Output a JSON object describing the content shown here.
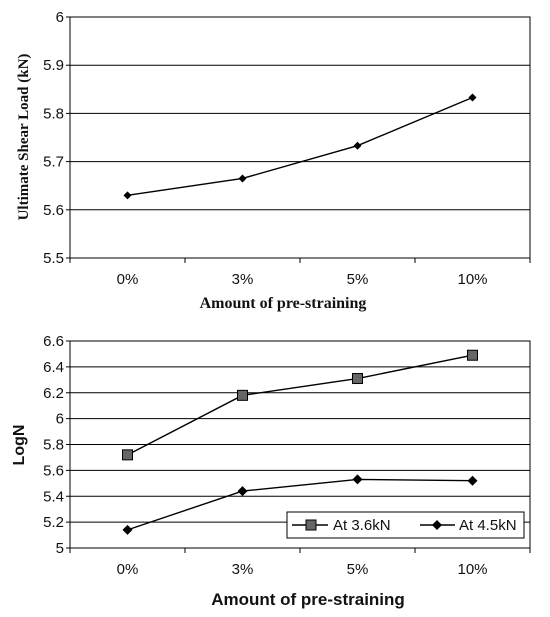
{
  "chart_data": [
    {
      "type": "line",
      "categories": [
        "0%",
        "3%",
        "5%",
        "10%"
      ],
      "series": [
        {
          "values": [
            5.63,
            5.665,
            5.733,
            5.833
          ],
          "color": "#000000",
          "marker": "diamond"
        }
      ],
      "xlabel": "Amount of pre-straining",
      "ylabel": "Ultimate Shear Load (kN)",
      "ylim": [
        5.5,
        6.0
      ],
      "yticks": [
        "5.5",
        "5.6",
        "5.7",
        "5.8",
        "5.9",
        "6"
      ],
      "grid": true,
      "legend": null
    },
    {
      "type": "line",
      "categories": [
        "0%",
        "3%",
        "5%",
        "10%"
      ],
      "series": [
        {
          "name": "At 3.6kN",
          "values": [
            5.72,
            6.18,
            6.31,
            6.49
          ],
          "color": "#666666",
          "marker": "square"
        },
        {
          "name": "At 4.5kN",
          "values": [
            5.14,
            5.44,
            5.53,
            5.52
          ],
          "color": "#000000",
          "marker": "diamond"
        }
      ],
      "xlabel": "Amount of pre-straining",
      "ylabel": "LogN",
      "ylim": [
        5.0,
        6.6
      ],
      "yticks": [
        "5",
        "5.2",
        "5.4",
        "5.6",
        "5.8",
        "6",
        "6.2",
        "6.4",
        "6.6"
      ],
      "grid": true,
      "legend": "bottom-right"
    }
  ]
}
